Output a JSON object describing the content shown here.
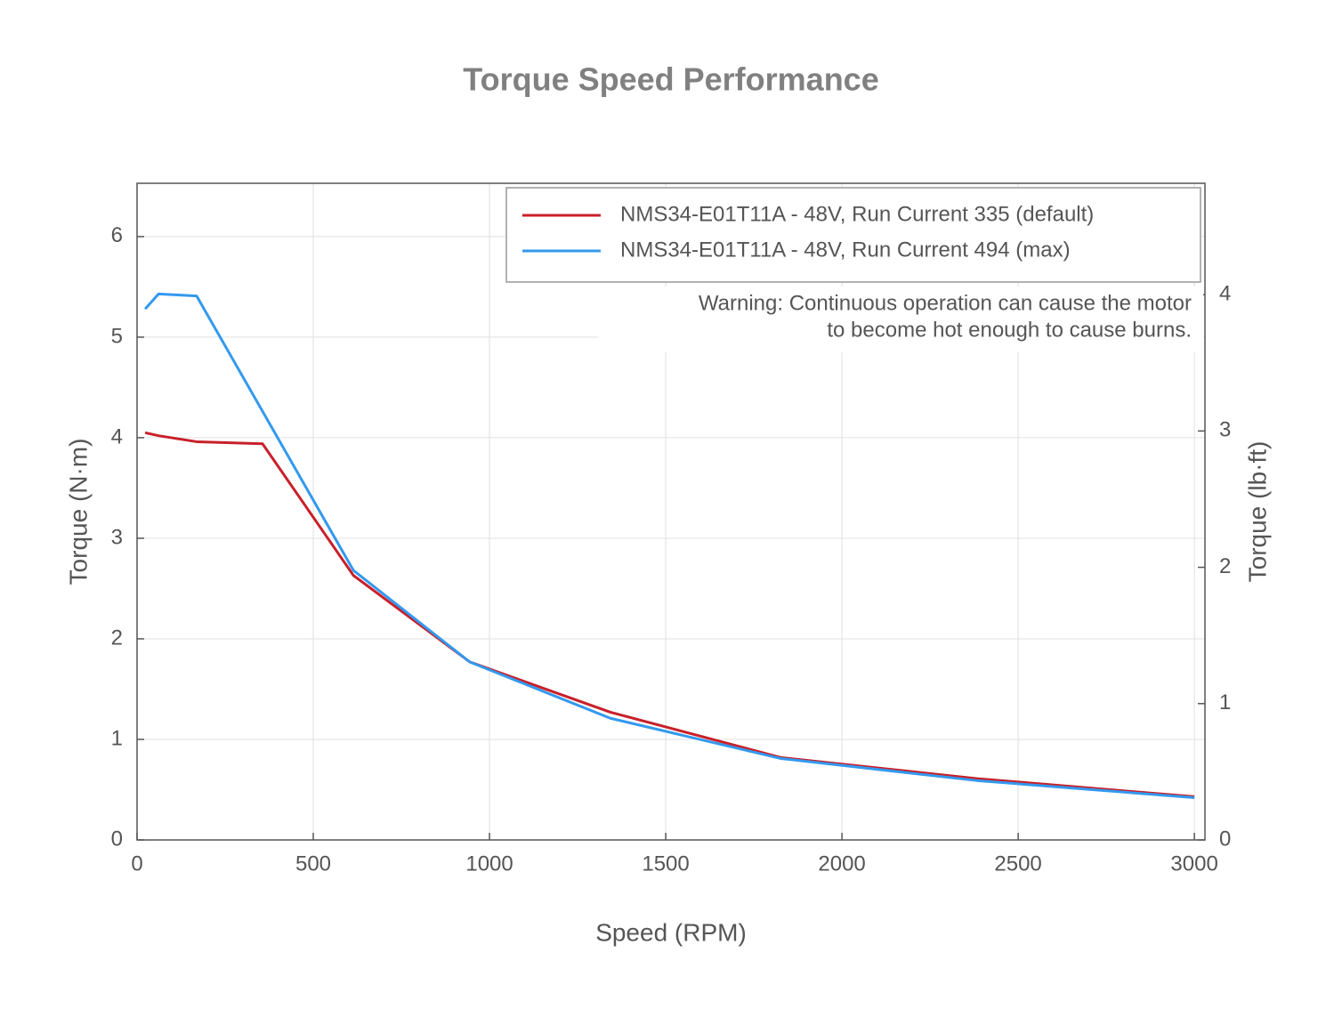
{
  "chart_data": {
    "type": "line",
    "title": "Torque Speed Performance",
    "x_label": "Speed (RPM)",
    "y_label": "Torque (N·m)",
    "y2_label": "Torque (lb·ft)",
    "annotation": [
      "Warning: Continuous operation can cause the motor",
      "to become hot enough to cause burns."
    ],
    "series": [
      {
        "name": "NMS34-E01T11A - 48V, Run Current 335 (default)",
        "color": "#c8202a",
        "x": [
          23,
          61,
          169,
          356,
          614,
          944,
          1343,
          1826,
          2384,
          3000
        ],
        "values": [
          4.05,
          4.02,
          3.96,
          3.94,
          2.63,
          1.77,
          1.27,
          0.82,
          0.61,
          0.43
        ]
      },
      {
        "name": "NMS34-E01T11A - 48V, Run Current 494 (max)",
        "color": "#3399ee",
        "x": [
          23,
          61,
          169,
          614,
          944,
          1343,
          1826,
          2384,
          3000
        ],
        "values": [
          5.28,
          5.43,
          5.41,
          2.68,
          1.77,
          1.21,
          0.81,
          0.59,
          0.42
        ]
      }
    ],
    "xlim": [
      0,
      3030
    ],
    "xticks": [
      0,
      500,
      1000,
      1500,
      2000,
      2500,
      3000
    ],
    "ylim": [
      0,
      6.53
    ],
    "yticks": [
      0,
      1,
      2,
      3,
      4,
      5,
      6
    ],
    "y2lim": [
      0,
      4.817
    ],
    "y2ticks": [
      0,
      1,
      2,
      3,
      4
    ],
    "grid": true,
    "legend": "upper right"
  }
}
